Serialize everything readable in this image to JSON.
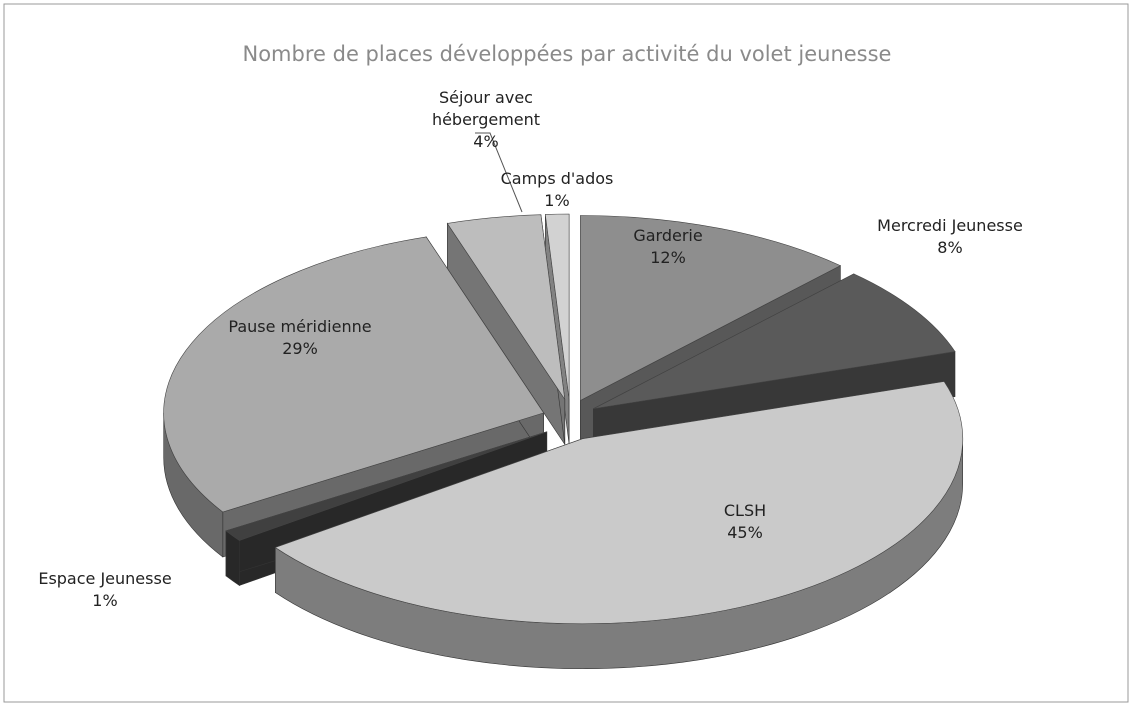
{
  "chart_data": {
    "type": "pie",
    "title": "Nombre de places développées par activité du volet jeunesse",
    "categories": [
      "Garderie",
      "Mercredi Jeunesse",
      "CLSH",
      "Espace Jeunesse",
      "Pause méridienne",
      "Séjour avec hébergement",
      "Camps d'ados"
    ],
    "values": [
      12,
      8,
      45,
      1,
      29,
      4,
      1
    ],
    "value_labels": [
      "12%",
      "8%",
      "45%",
      "1%",
      "29%",
      "4%",
      "1%"
    ],
    "colors": [
      "#8e8e8e",
      "#5a5a5a",
      "#cacaca",
      "#404040",
      "#aaaaaa",
      "#bdbdbd",
      "#d2d2d2"
    ]
  }
}
